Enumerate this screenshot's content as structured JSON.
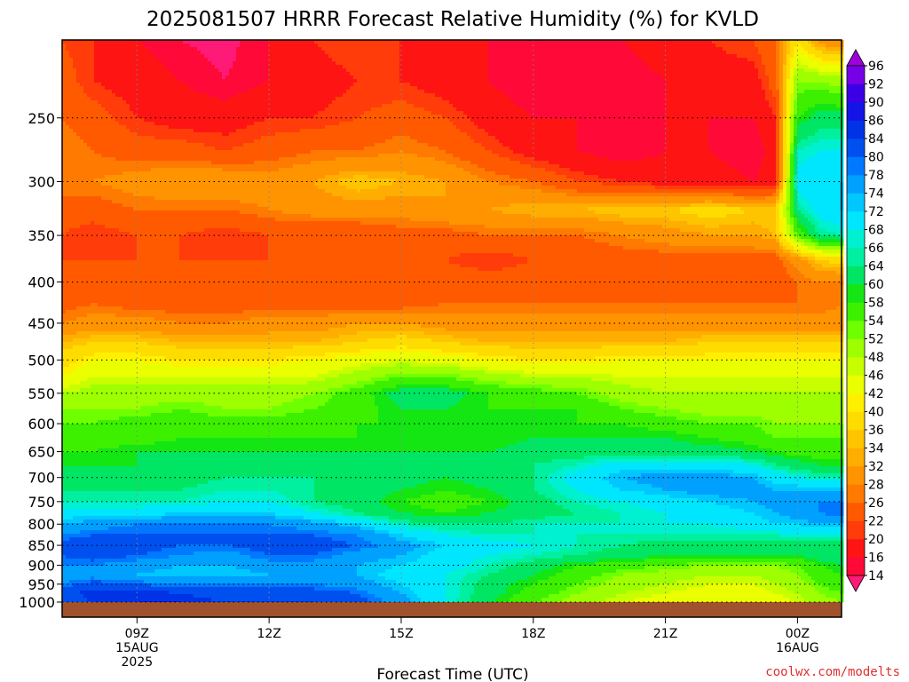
{
  "chart_data": {
    "type": "heatmap",
    "title": "2025081507 HRRR Forecast Relative Humidity (%) for KVLD",
    "xlabel": "Forecast Time (UTC)",
    "ylabel": "",
    "credit": "coolwx.com/modelts",
    "y_scale": "log-pressure",
    "y_range_hpa": [
      1000,
      200
    ],
    "y_ticks": [
      250,
      300,
      350,
      400,
      450,
      500,
      550,
      600,
      650,
      700,
      750,
      800,
      850,
      900,
      950,
      1000
    ],
    "x_range_hours_utc": [
      7.3,
      25
    ],
    "x_ticks": [
      {
        "hour": 9,
        "lines": [
          "09Z",
          "15AUG",
          "2025"
        ]
      },
      {
        "hour": 12,
        "lines": [
          "12Z"
        ]
      },
      {
        "hour": 15,
        "lines": [
          "15Z"
        ]
      },
      {
        "hour": 18,
        "lines": [
          "18Z"
        ]
      },
      {
        "hour": 21,
        "lines": [
          "21Z"
        ]
      },
      {
        "hour": 24,
        "lines": [
          "00Z",
          "16AUG"
        ]
      }
    ],
    "grid": true,
    "colorbar": {
      "position": "right",
      "levels": [
        14,
        16,
        20,
        22,
        26,
        28,
        32,
        34,
        36,
        40,
        42,
        46,
        48,
        52,
        54,
        58,
        60,
        64,
        66,
        68,
        72,
        74,
        78,
        80,
        84,
        86,
        90,
        92,
        96
      ],
      "colors": [
        "#ff1a78",
        "#ff0a38",
        "#ff1414",
        "#ff3c0a",
        "#ff5a00",
        "#ff7a00",
        "#ff9400",
        "#ffad00",
        "#ffc400",
        "#ffdc00",
        "#fff000",
        "#eaff00",
        "#c8ff00",
        "#9eff00",
        "#6eff00",
        "#3cf000",
        "#14e614",
        "#00e664",
        "#00f0a0",
        "#00f0d2",
        "#00e6ff",
        "#00c8ff",
        "#00a0ff",
        "#0078ff",
        "#0050f0",
        "#0032e6",
        "#1414e6",
        "#3c00e6",
        "#7800e6",
        "#a000e0"
      ]
    },
    "rh_field": {
      "times": [
        7.3,
        8,
        9,
        10,
        11,
        12,
        13,
        14,
        15,
        16,
        17,
        18,
        19,
        20,
        21,
        22,
        23,
        23.5,
        24,
        24.5,
        25
      ],
      "levels_hpa": [
        200,
        225,
        250,
        275,
        300,
        325,
        350,
        375,
        400,
        425,
        450,
        475,
        500,
        525,
        550,
        575,
        600,
        625,
        650,
        675,
        700,
        725,
        750,
        775,
        800,
        825,
        850,
        875,
        900,
        925,
        950,
        975,
        1000
      ],
      "values": [
        [
          22,
          20,
          16,
          14,
          13,
          16,
          20,
          22,
          20,
          18,
          16,
          16,
          16,
          16,
          18,
          20,
          22,
          26,
          40,
          30,
          28
        ],
        [
          24,
          20,
          18,
          16,
          14,
          16,
          18,
          20,
          20,
          18,
          16,
          14,
          14,
          14,
          16,
          18,
          18,
          24,
          52,
          52,
          50
        ],
        [
          26,
          24,
          20,
          18,
          18,
          20,
          20,
          22,
          24,
          22,
          18,
          16,
          16,
          14,
          16,
          16,
          16,
          20,
          58,
          62,
          62
        ],
        [
          28,
          26,
          24,
          24,
          22,
          24,
          26,
          26,
          28,
          26,
          22,
          18,
          16,
          14,
          16,
          16,
          14,
          18,
          66,
          68,
          68
        ],
        [
          28,
          28,
          30,
          32,
          32,
          30,
          32,
          36,
          34,
          32,
          28,
          26,
          22,
          20,
          18,
          18,
          16,
          18,
          70,
          72,
          72
        ],
        [
          24,
          24,
          26,
          26,
          26,
          28,
          30,
          30,
          30,
          32,
          32,
          34,
          34,
          36,
          36,
          38,
          36,
          36,
          64,
          70,
          72
        ],
        [
          22,
          20,
          22,
          22,
          20,
          22,
          22,
          22,
          24,
          24,
          26,
          26,
          26,
          28,
          30,
          32,
          32,
          34,
          54,
          64,
          66
        ],
        [
          22,
          22,
          22,
          22,
          22,
          22,
          22,
          22,
          22,
          22,
          20,
          22,
          22,
          24,
          24,
          24,
          24,
          24,
          30,
          36,
          38
        ],
        [
          22,
          24,
          24,
          22,
          22,
          22,
          24,
          24,
          24,
          24,
          24,
          24,
          24,
          24,
          24,
          24,
          24,
          24,
          26,
          28,
          28
        ],
        [
          24,
          26,
          24,
          24,
          24,
          24,
          24,
          24,
          24,
          26,
          26,
          26,
          26,
          26,
          26,
          26,
          26,
          26,
          26,
          26,
          28
        ],
        [
          28,
          30,
          30,
          28,
          28,
          30,
          30,
          32,
          32,
          30,
          30,
          30,
          30,
          30,
          30,
          30,
          30,
          30,
          30,
          30,
          30
        ],
        [
          34,
          36,
          36,
          34,
          34,
          34,
          34,
          36,
          38,
          36,
          34,
          34,
          34,
          34,
          34,
          36,
          36,
          36,
          36,
          36,
          36
        ],
        [
          38,
          42,
          42,
          40,
          40,
          40,
          42,
          44,
          46,
          44,
          42,
          40,
          40,
          42,
          42,
          42,
          42,
          42,
          42,
          42,
          42
        ],
        [
          42,
          46,
          46,
          46,
          46,
          46,
          46,
          50,
          54,
          54,
          50,
          48,
          48,
          46,
          46,
          46,
          46,
          46,
          46,
          46,
          46
        ],
        [
          48,
          50,
          50,
          50,
          50,
          50,
          52,
          56,
          62,
          62,
          58,
          56,
          54,
          50,
          48,
          48,
          48,
          48,
          48,
          48,
          48
        ],
        [
          52,
          52,
          52,
          54,
          52,
          52,
          54,
          56,
          60,
          60,
          58,
          58,
          58,
          54,
          52,
          50,
          50,
          50,
          50,
          50,
          50
        ],
        [
          54,
          54,
          56,
          56,
          56,
          56,
          56,
          58,
          58,
          58,
          58,
          58,
          58,
          58,
          56,
          54,
          54,
          52,
          52,
          52,
          52
        ],
        [
          56,
          56,
          56,
          58,
          58,
          58,
          58,
          58,
          58,
          58,
          58,
          60,
          60,
          60,
          60,
          58,
          56,
          54,
          54,
          54,
          54
        ],
        [
          58,
          58,
          60,
          60,
          60,
          60,
          60,
          60,
          60,
          60,
          60,
          62,
          62,
          62,
          62,
          62,
          60,
          58,
          56,
          56,
          56
        ],
        [
          60,
          60,
          60,
          62,
          62,
          62,
          62,
          62,
          60,
          60,
          62,
          64,
          66,
          70,
          70,
          70,
          68,
          64,
          62,
          60,
          60
        ],
        [
          62,
          62,
          62,
          62,
          64,
          64,
          64,
          62,
          62,
          60,
          62,
          64,
          70,
          74,
          76,
          76,
          74,
          70,
          68,
          66,
          66
        ],
        [
          64,
          64,
          64,
          64,
          66,
          66,
          64,
          62,
          60,
          58,
          60,
          64,
          68,
          72,
          74,
          76,
          76,
          74,
          74,
          74,
          74
        ],
        [
          66,
          66,
          66,
          66,
          68,
          68,
          64,
          62,
          58,
          56,
          58,
          62,
          66,
          68,
          70,
          72,
          74,
          76,
          78,
          78,
          78
        ],
        [
          70,
          70,
          70,
          72,
          72,
          72,
          68,
          64,
          60,
          58,
          60,
          62,
          64,
          66,
          68,
          70,
          72,
          74,
          76,
          78,
          80
        ],
        [
          74,
          76,
          78,
          78,
          78,
          78,
          76,
          72,
          66,
          64,
          64,
          66,
          66,
          66,
          68,
          68,
          70,
          72,
          72,
          74,
          74
        ],
        [
          78,
          80,
          80,
          80,
          80,
          80,
          80,
          78,
          72,
          68,
          66,
          66,
          66,
          66,
          66,
          66,
          66,
          66,
          68,
          68,
          68
        ],
        [
          82,
          84,
          82,
          80,
          80,
          82,
          82,
          80,
          76,
          72,
          70,
          68,
          66,
          64,
          62,
          62,
          62,
          62,
          62,
          62,
          62
        ],
        [
          80,
          82,
          80,
          78,
          76,
          80,
          80,
          76,
          74,
          70,
          68,
          66,
          64,
          62,
          60,
          60,
          60,
          60,
          60,
          62,
          62
        ],
        [
          78,
          78,
          76,
          74,
          74,
          76,
          76,
          74,
          72,
          70,
          66,
          62,
          58,
          56,
          54,
          52,
          52,
          52,
          54,
          58,
          60
        ],
        [
          76,
          76,
          74,
          72,
          72,
          74,
          74,
          74,
          70,
          68,
          64,
          60,
          56,
          52,
          50,
          48,
          48,
          50,
          52,
          56,
          58
        ],
        [
          78,
          82,
          80,
          78,
          78,
          78,
          78,
          76,
          72,
          68,
          62,
          58,
          54,
          50,
          48,
          46,
          46,
          48,
          50,
          54,
          56
        ],
        [
          82,
          86,
          86,
          84,
          82,
          82,
          82,
          80,
          74,
          68,
          62,
          56,
          52,
          48,
          46,
          44,
          44,
          46,
          48,
          52,
          54
        ],
        [
          80,
          84,
          86,
          86,
          84,
          84,
          84,
          82,
          76,
          68,
          60,
          54,
          50,
          46,
          44,
          42,
          42,
          44,
          46,
          50,
          52
        ]
      ]
    }
  }
}
